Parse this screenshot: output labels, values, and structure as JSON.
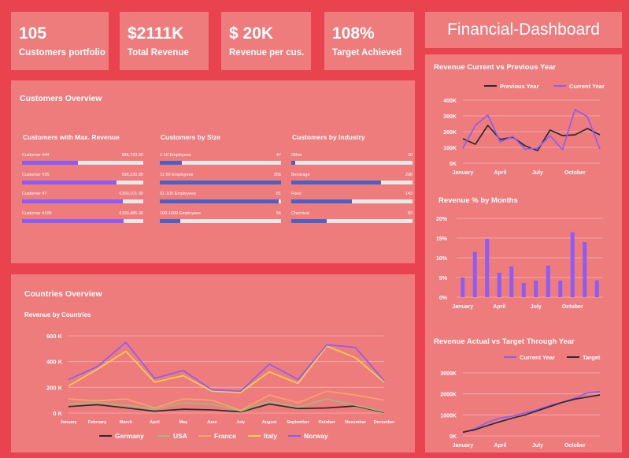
{
  "kpis": [
    {
      "value": "105",
      "label": "Customers portfolio"
    },
    {
      "value": "$2111K",
      "label": "Total Revenue"
    },
    {
      "value": "$ 20K",
      "label": "Revenue per cus."
    },
    {
      "value": "108%",
      "label": "Target Achieved"
    }
  ],
  "dashboard_title": "Financial-Dashboard",
  "customers_overview": {
    "title": "Customers Overview",
    "max_revenue": {
      "title": "Customers with Max. Revenue",
      "items": [
        {
          "name": "Customer #44",
          "value": "€86,723.00",
          "fraction": 0.46
        },
        {
          "name": "Customer #35",
          "value": "€98,230.00",
          "fraction": 0.78
        },
        {
          "name": "Customer #7",
          "value": "€100,101.00",
          "fraction": 0.83
        },
        {
          "name": "Customer #100",
          "value": "€100,485.00",
          "fraction": 0.84
        }
      ],
      "color": "#8b5cf6"
    },
    "by_size": {
      "title": "Customers by Size",
      "items": [
        {
          "name": "1-10 Employees",
          "value": "47",
          "fraction": 0.18
        },
        {
          "name": "11-50 Employees",
          "value": "266",
          "fraction": 1.0
        },
        {
          "name": "51-100 Employees",
          "value": "81",
          "fraction": 0.98
        },
        {
          "name": "100-1000 Employees",
          "value": "56",
          "fraction": 0.17
        }
      ],
      "color": "#4b62c4"
    },
    "by_industry": {
      "title": "Customers by Industry",
      "items": [
        {
          "name": "Other",
          "value": "10",
          "fraction": 0.03
        },
        {
          "name": "Bevarage",
          "value": "208",
          "fraction": 0.74
        },
        {
          "name": "Food",
          "value": "143",
          "fraction": 0.5
        },
        {
          "name": "Chemical",
          "value": "83",
          "fraction": 0.29
        }
      ],
      "color": "#4b62c4"
    }
  },
  "countries_overview": {
    "title": "Countries Overview",
    "subtitle": "Revenue by Countries"
  },
  "chart_data": [
    {
      "type": "line",
      "title": "Revenue by Countries",
      "x": [
        "January",
        "February",
        "March",
        "April",
        "May",
        "June",
        "July",
        "August",
        "September",
        "October",
        "November",
        "December"
      ],
      "ylim": [
        0,
        600000
      ],
      "yticks": [
        "0 K",
        "200 K",
        "400 K",
        "600 K"
      ],
      "legend": "bottom",
      "series": [
        {
          "name": "Germany",
          "color": "#2b2b2b",
          "values": [
            50000,
            65000,
            40000,
            15000,
            30000,
            25000,
            10000,
            70000,
            35000,
            40000,
            55000,
            5000
          ]
        },
        {
          "name": "USA",
          "color": "#9bbb7a",
          "values": [
            70000,
            80000,
            60000,
            30000,
            80000,
            70000,
            15000,
            90000,
            45000,
            110000,
            60000,
            10000
          ]
        },
        {
          "name": "France",
          "color": "#f4a36b",
          "values": [
            110000,
            95000,
            110000,
            40000,
            110000,
            100000,
            20000,
            140000,
            80000,
            170000,
            140000,
            100000
          ]
        },
        {
          "name": "Italy",
          "color": "#f2d24a",
          "values": [
            210000,
            340000,
            480000,
            240000,
            290000,
            170000,
            160000,
            320000,
            230000,
            520000,
            430000,
            240000
          ]
        },
        {
          "name": "Norway",
          "color": "#8b5cf6",
          "values": [
            260000,
            360000,
            550000,
            270000,
            330000,
            180000,
            170000,
            380000,
            260000,
            530000,
            510000,
            250000
          ]
        }
      ]
    },
    {
      "type": "line",
      "title": "Revenue Current vs Previous Year",
      "x": [
        "January",
        "February",
        "March",
        "April",
        "May",
        "June",
        "July",
        "August",
        "September",
        "October",
        "November",
        "December"
      ],
      "xticks": [
        "January",
        "April",
        "July",
        "October"
      ],
      "ylim": [
        0,
        400000
      ],
      "yticks": [
        "0K",
        "100K",
        "200K",
        "300K",
        "400K"
      ],
      "legend": "top",
      "series": [
        {
          "name": "Previous Year",
          "color": "#2b2b2b",
          "values": [
            155000,
            120000,
            240000,
            150000,
            165000,
            110000,
            80000,
            210000,
            175000,
            180000,
            220000,
            180000
          ]
        },
        {
          "name": "Current Year",
          "color": "#8b5cf6",
          "values": [
            95000,
            240000,
            305000,
            135000,
            170000,
            90000,
            95000,
            175000,
            85000,
            340000,
            295000,
            90000
          ]
        }
      ]
    },
    {
      "type": "bar",
      "title": "Revenue % by Months",
      "x": [
        "January",
        "February",
        "March",
        "April",
        "May",
        "June",
        "July",
        "August",
        "September",
        "October",
        "November",
        "December"
      ],
      "xticks": [
        "January",
        "April",
        "July",
        "October"
      ],
      "ylim": [
        0,
        0.2
      ],
      "yticks": [
        "0%",
        "5%",
        "10%",
        "15%",
        "20%"
      ],
      "color": "#8b5cf6",
      "values": [
        0.05,
        0.115,
        0.148,
        0.062,
        0.078,
        0.036,
        0.042,
        0.08,
        0.042,
        0.165,
        0.14,
        0.043
      ]
    },
    {
      "type": "line",
      "title": "Revenue Actual vs Target Through Year",
      "x": [
        "January",
        "February",
        "March",
        "April",
        "May",
        "June",
        "July",
        "August",
        "September",
        "October",
        "November",
        "December"
      ],
      "xticks": [
        "January",
        "April",
        "July",
        "October"
      ],
      "ylim": [
        0,
        3000000
      ],
      "yticks": [
        "0K",
        "1000K",
        "2000K",
        "3000K"
      ],
      "legend": "top",
      "series": [
        {
          "name": "Current Year",
          "color": "#8b5cf6",
          "values": [
            150000,
            350000,
            650000,
            850000,
            950000,
            1100000,
            1250000,
            1450000,
            1600000,
            1800000,
            2050000,
            2111000
          ]
        },
        {
          "name": "Target",
          "color": "#2b2b2b",
          "values": [
            180000,
            300000,
            500000,
            680000,
            850000,
            1000000,
            1200000,
            1400000,
            1600000,
            1750000,
            1850000,
            1950000
          ]
        }
      ]
    }
  ]
}
